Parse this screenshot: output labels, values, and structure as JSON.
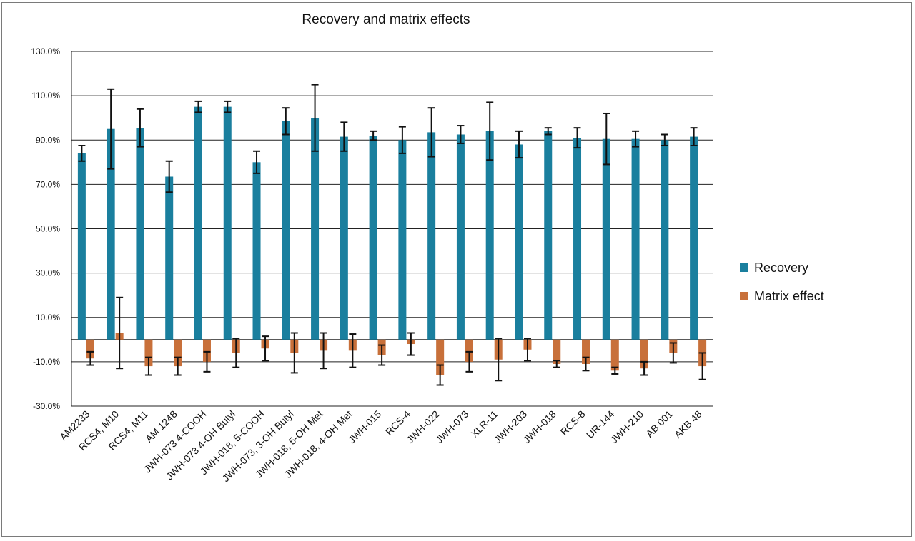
{
  "chart_data": {
    "type": "bar",
    "title": "Recovery and matrix effects",
    "xlabel": "",
    "ylabel": "",
    "ylim": [
      -30,
      130
    ],
    "yticks": [
      -30,
      -10,
      10,
      30,
      50,
      70,
      90,
      110,
      130
    ],
    "ytick_labels": [
      "-30.0%",
      "-10.0%",
      "10.0%",
      "30.0%",
      "50.0%",
      "70.0%",
      "90.0%",
      "110.0%",
      "130.0%"
    ],
    "grid": true,
    "legend_position": "right",
    "categories": [
      "AM2233",
      "RCS4, M10",
      "RCS4, M11",
      "AM 1248",
      "JWH-073 4-COOH",
      "JWH-073 4-OH Butyl",
      "JWH-018, 5-COOH",
      "JWH-073, 3-OH Butyl",
      "JWH-018, 5-OH Met",
      "JWH-018, 4-OH Met",
      "JWH-015",
      "RCS-4",
      "JWH-022",
      "JWH-073",
      "XLR-11",
      "JWH-203",
      "JWH-018",
      "RCS-8",
      "UR-144",
      "JWH-210",
      "AB 001",
      "AKB 48"
    ],
    "series": [
      {
        "name": "Recovery",
        "color": "#1a7f9e",
        "values": [
          84,
          95,
          95.5,
          73.5,
          105,
          105,
          80,
          98.5,
          100,
          91.5,
          92,
          90,
          93.5,
          92.5,
          94,
          88,
          94,
          91,
          90.5,
          90.5,
          90,
          91.5
        ],
        "errors": [
          3.5,
          18,
          8.5,
          7,
          2.5,
          2.5,
          5,
          6,
          15,
          6.5,
          2,
          6,
          11,
          4,
          13,
          6,
          1.5,
          4.5,
          11.5,
          3.5,
          2.5,
          4
        ]
      },
      {
        "name": "Matrix effect",
        "color": "#c8703a",
        "values": [
          -8.5,
          3,
          -12,
          -12,
          -10,
          -6,
          -4,
          -6,
          -5,
          -5,
          -7,
          -2,
          -16,
          -10,
          -9,
          -4.5,
          -11,
          -11,
          -14,
          -13,
          -6,
          -12
        ],
        "errors": [
          3,
          16,
          4,
          4,
          4.5,
          6.5,
          5.5,
          9,
          8,
          7.5,
          4.5,
          5,
          4.5,
          4.5,
          9.5,
          5,
          1.5,
          3,
          1.5,
          3,
          4.5,
          6
        ]
      }
    ]
  }
}
